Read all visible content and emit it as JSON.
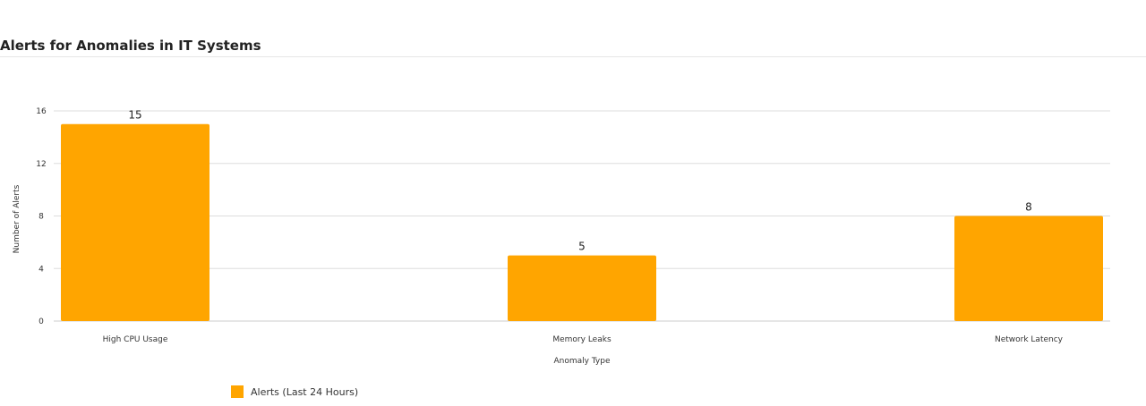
{
  "header": {
    "title": "Alerts for Anomalies in IT Systems"
  },
  "chart_data": {
    "type": "bar",
    "categories": [
      "High CPU Usage",
      "Memory Leaks",
      "Network Latency"
    ],
    "series": [
      {
        "name": "Alerts (Last 24 Hours)",
        "values": [
          15,
          5,
          8
        ],
        "color": "#FFA500"
      }
    ],
    "xlabel": "Anomaly Type",
    "ylabel": "Number of Alerts",
    "ylim": [
      0,
      16
    ],
    "yticks": [
      0,
      4,
      8,
      12,
      16
    ],
    "grid": true,
    "legend": "bottom-left",
    "data_labels": true
  }
}
